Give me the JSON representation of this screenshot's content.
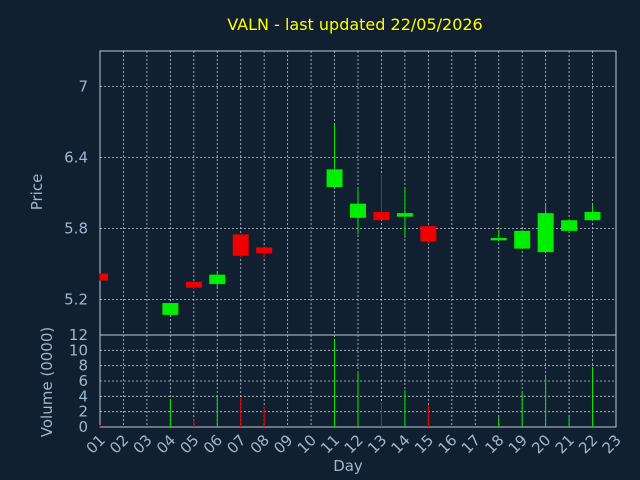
{
  "chart_data": {
    "type": "candlestick",
    "title": "VALN - last updated 22/05/2026",
    "xlabel": "Day",
    "price_panel": {
      "ylabel": "Price",
      "ylim": [
        4.9,
        7.3
      ],
      "yticks": [
        5.2,
        5.8,
        6.4,
        7
      ]
    },
    "volume_panel": {
      "ylabel": "Volume (0000)",
      "ylim": [
        0,
        12
      ],
      "yticks": [
        0,
        2,
        4,
        6,
        8,
        10,
        12
      ]
    },
    "x_ticks": [
      "01",
      "02",
      "03",
      "04",
      "05",
      "06",
      "07",
      "08",
      "09",
      "10",
      "11",
      "12",
      "13",
      "14",
      "15",
      "16",
      "17",
      "18",
      "19",
      "20",
      "21",
      "22",
      "23"
    ],
    "grid": true,
    "colors": {
      "background": "#102030",
      "grid": "#c0c8d0",
      "up": "#00ee00",
      "down": "#ee0000",
      "title": "#ffff00",
      "axis_text": "#9fb6d0"
    },
    "candles": [
      {
        "day": "01",
        "open": 5.42,
        "high": 5.42,
        "low": 5.36,
        "close": 5.36,
        "volume": 0.3
      },
      {
        "day": "04",
        "open": 5.07,
        "high": 5.17,
        "low": 5.07,
        "close": 5.17,
        "volume": 3.7
      },
      {
        "day": "05",
        "open": 5.35,
        "high": 5.35,
        "low": 5.29,
        "close": 5.3,
        "volume": 1.0
      },
      {
        "day": "06",
        "open": 5.33,
        "high": 5.43,
        "low": 5.3,
        "close": 5.41,
        "volume": 4.2
      },
      {
        "day": "07",
        "open": 5.75,
        "high": 5.75,
        "low": 5.56,
        "close": 5.57,
        "volume": 3.8
      },
      {
        "day": "08",
        "open": 5.64,
        "high": 5.64,
        "low": 5.55,
        "close": 5.59,
        "volume": 2.6
      },
      {
        "day": "11",
        "open": 6.15,
        "high": 6.68,
        "low": 6.15,
        "close": 6.3,
        "volume": 11.5
      },
      {
        "day": "12",
        "open": 5.89,
        "high": 6.13,
        "low": 5.75,
        "close": 6.01,
        "volume": 7.3
      },
      {
        "day": "13",
        "open": 5.94,
        "high": 6.25,
        "low": 5.87,
        "close": 5.87,
        "volume": 3.2
      },
      {
        "day": "14",
        "open": 5.9,
        "high": 6.14,
        "low": 5.72,
        "close": 5.93,
        "volume": 4.8
      },
      {
        "day": "15",
        "open": 5.82,
        "high": 5.82,
        "low": 5.67,
        "close": 5.69,
        "volume": 2.8
      },
      {
        "day": "18",
        "open": 5.7,
        "high": 5.79,
        "low": 5.69,
        "close": 5.72,
        "volume": 1.3
      },
      {
        "day": "19",
        "open": 5.63,
        "high": 5.79,
        "low": 5.63,
        "close": 5.78,
        "volume": 4.7
      },
      {
        "day": "20",
        "open": 5.6,
        "high": 6.01,
        "low": 5.6,
        "close": 5.93,
        "volume": 6.5
      },
      {
        "day": "21",
        "open": 5.78,
        "high": 5.88,
        "low": 5.77,
        "close": 5.87,
        "volume": 1.3
      },
      {
        "day": "22",
        "open": 5.87,
        "high": 6.0,
        "low": 5.87,
        "close": 5.94,
        "volume": 7.7
      }
    ]
  }
}
